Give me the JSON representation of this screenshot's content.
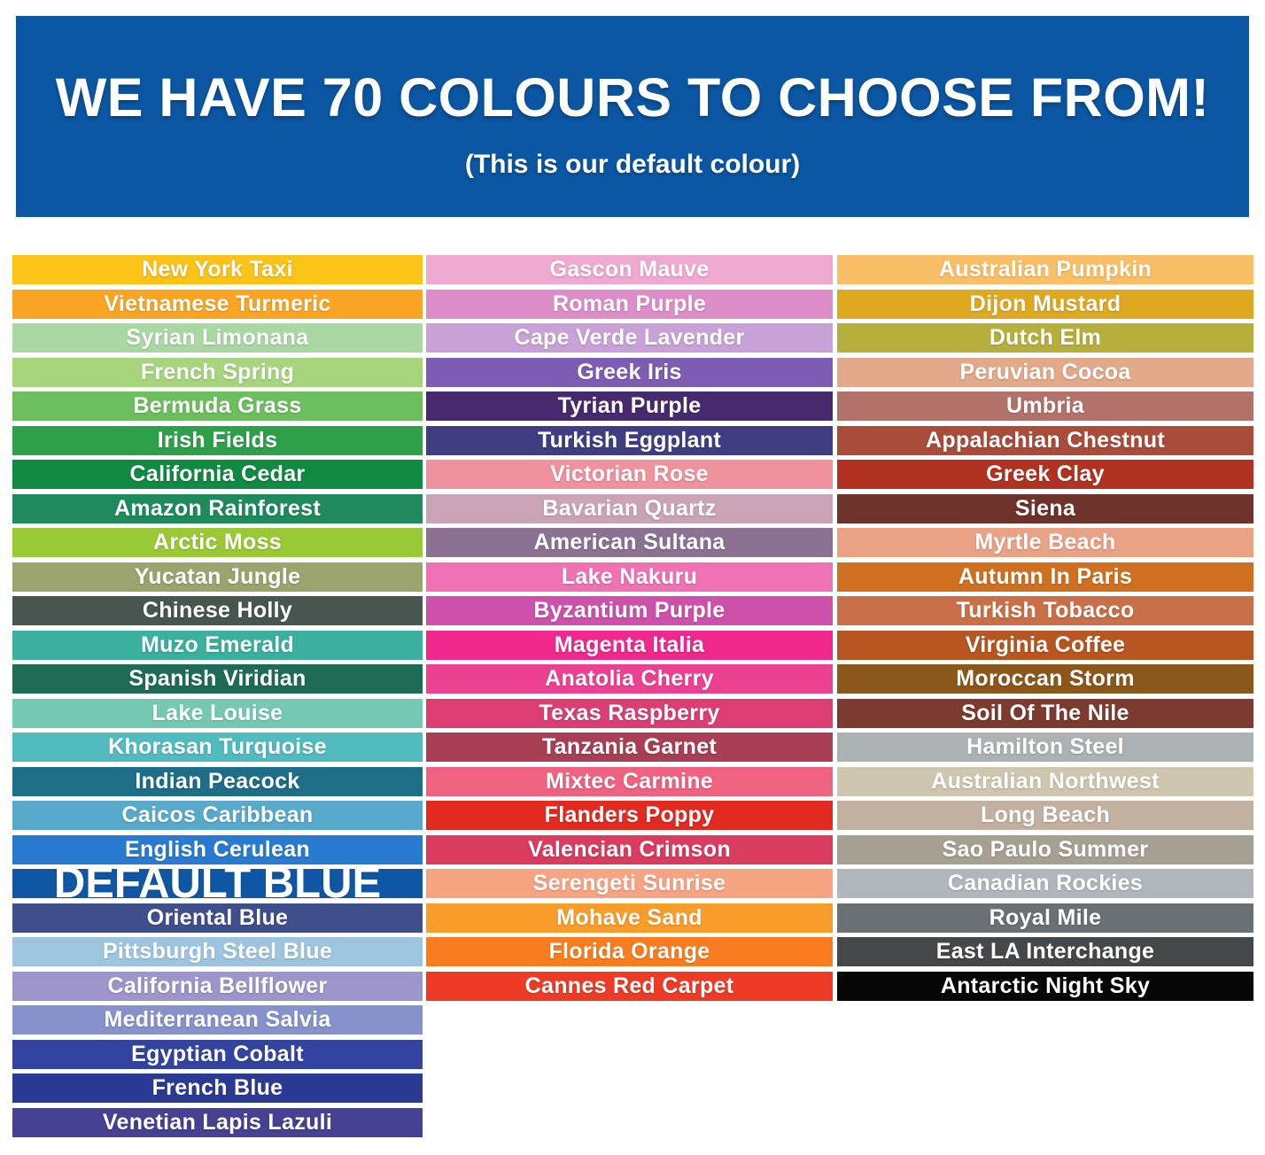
{
  "header": {
    "title": "WE HAVE 70 COLOURS TO CHOOSE FROM!",
    "subtitle": "(This is our default colour)",
    "background": "#0B57A4",
    "text_color": "#FFFFFF",
    "total_colours": 70
  },
  "columns": [
    {
      "id": "column-1",
      "swatches": [
        {
          "name": "New York Taxi",
          "color": "#FBC218"
        },
        {
          "name": "Vietnamese Turmeric",
          "color": "#F9A523"
        },
        {
          "name": "Syrian Limonana",
          "color": "#A9D8A2"
        },
        {
          "name": "French Spring",
          "color": "#A6D57E"
        },
        {
          "name": "Bermuda Grass",
          "color": "#6DBE5F"
        },
        {
          "name": "Irish Fields",
          "color": "#2FA04A"
        },
        {
          "name": "California Cedar",
          "color": "#0F8A40"
        },
        {
          "name": "Amazon Rainforest",
          "color": "#1F8A5C"
        },
        {
          "name": "Arctic Moss",
          "color": "#9AC938"
        },
        {
          "name": "Yucatan Jungle",
          "color": "#9CA46E"
        },
        {
          "name": "Chinese Holly",
          "color": "#475750"
        },
        {
          "name": "Muzo Emerald",
          "color": "#3BB09E"
        },
        {
          "name": "Spanish Viridian",
          "color": "#1F6C56"
        },
        {
          "name": "Lake Louise",
          "color": "#75C9B3"
        },
        {
          "name": "Khorasan Turquoise",
          "color": "#52BBC0"
        },
        {
          "name": "Indian Peacock",
          "color": "#1E6E88"
        },
        {
          "name": "Caicos Caribbean",
          "color": "#58A9CC"
        },
        {
          "name": "English Cerulean",
          "color": "#297BD1"
        },
        {
          "name": "DEFAULT BLUE",
          "color": "#0F57A4",
          "highlight": true
        },
        {
          "name": "Oriental Blue",
          "color": "#3F4F8C"
        },
        {
          "name": "Pittsburgh Steel Blue",
          "color": "#9EC5E0"
        },
        {
          "name": "California Bellflower",
          "color": "#9D95CB"
        },
        {
          "name": "Mediterranean Salvia",
          "color": "#8692CB"
        },
        {
          "name": "Egyptian Cobalt",
          "color": "#3244A0"
        },
        {
          "name": "French Blue",
          "color": "#2B3B94"
        },
        {
          "name": "Venetian Lapis Lazuli",
          "color": "#464192"
        }
      ]
    },
    {
      "id": "column-2",
      "swatches": [
        {
          "name": "Gascon Mauve",
          "color": "#F0A9D0"
        },
        {
          "name": "Roman Purple",
          "color": "#DD8DC8"
        },
        {
          "name": "Cape Verde Lavender",
          "color": "#C8A2D6"
        },
        {
          "name": "Greek Iris",
          "color": "#7D5DB3"
        },
        {
          "name": "Tyrian Purple",
          "color": "#47296D"
        },
        {
          "name": "Turkish Eggplant",
          "color": "#413D83"
        },
        {
          "name": "Victorian Rose",
          "color": "#EF929E"
        },
        {
          "name": "Bavarian Quartz",
          "color": "#CAA4B6"
        },
        {
          "name": "American Sultana",
          "color": "#8C7292"
        },
        {
          "name": "Lake Nakuru",
          "color": "#F071B4"
        },
        {
          "name": "Byzantium Purple",
          "color": "#CD51AA"
        },
        {
          "name": "Magenta Italia",
          "color": "#F0278D"
        },
        {
          "name": "Anatolia Cherry",
          "color": "#EC4190"
        },
        {
          "name": "Texas Raspberry",
          "color": "#DC3E73"
        },
        {
          "name": "Tanzania Garnet",
          "color": "#A83F54"
        },
        {
          "name": "Mixtec Carmine",
          "color": "#EF6380"
        },
        {
          "name": "Flanders Poppy",
          "color": "#E32A20"
        },
        {
          "name": "Valencian Crimson",
          "color": "#D93C5E"
        },
        {
          "name": "Serengeti Sunrise",
          "color": "#F7A483"
        },
        {
          "name": "Mohave Sand",
          "color": "#F99D2A"
        },
        {
          "name": "Florida Orange",
          "color": "#F97D1E"
        },
        {
          "name": "Cannes Red Carpet",
          "color": "#EE3B26"
        }
      ]
    },
    {
      "id": "column-3",
      "swatches": [
        {
          "name": "Australian Pumpkin",
          "color": "#FABE66"
        },
        {
          "name": "Dijon Mustard",
          "color": "#DEA920"
        },
        {
          "name": "Dutch Elm",
          "color": "#B6AF3E"
        },
        {
          "name": "Peruvian Cocoa",
          "color": "#E2A98A"
        },
        {
          "name": "Umbria",
          "color": "#B2726A"
        },
        {
          "name": "Appalachian Chestnut",
          "color": "#AA4C3A"
        },
        {
          "name": "Greek Clay",
          "color": "#B13220"
        },
        {
          "name": "Siena",
          "color": "#6D322A"
        },
        {
          "name": "Myrtle Beach",
          "color": "#EAA284"
        },
        {
          "name": "Autumn In Paris",
          "color": "#CE7020"
        },
        {
          "name": "Turkish Tobacco",
          "color": "#CA7048"
        },
        {
          "name": "Virginia Coffee",
          "color": "#B75620"
        },
        {
          "name": "Moroccan Storm",
          "color": "#8C571A"
        },
        {
          "name": "Soil Of The Nile",
          "color": "#7D3B2F"
        },
        {
          "name": "Hamilton Steel",
          "color": "#ACB2B4"
        },
        {
          "name": "Australian Northwest",
          "color": "#CEC6AE"
        },
        {
          "name": "Long Beach",
          "color": "#C2B1A0"
        },
        {
          "name": "Sao Paulo Summer",
          "color": "#A6A093"
        },
        {
          "name": "Canadian Rockies",
          "color": "#B0B6BB"
        },
        {
          "name": "Royal Mile",
          "color": "#6A7074"
        },
        {
          "name": "East LA Interchange",
          "color": "#45484A"
        },
        {
          "name": "Antarctic Night Sky",
          "color": "#060606"
        }
      ]
    }
  ]
}
